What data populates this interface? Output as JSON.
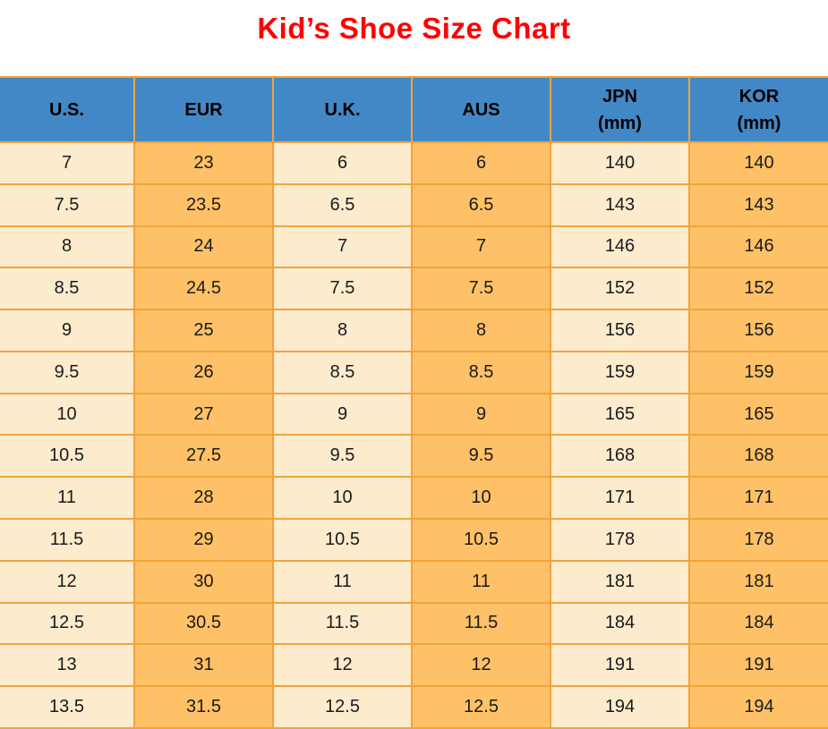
{
  "title": "Kid’s Shoe Size Chart",
  "colors": {
    "title": "#FF0000",
    "header_bg": "#4288C6",
    "header_text": "#000000",
    "cell_cream": "#FDEBCE",
    "cell_orange": "#FEC167",
    "border": "#F1A33C",
    "body_text": "#1A1A1A",
    "page_bg": "#FFFFFF"
  },
  "chart_data": {
    "type": "table",
    "title": "Kid’s Shoe Size Chart",
    "columns": [
      {
        "label": "U.S.",
        "sub": ""
      },
      {
        "label": "EUR",
        "sub": ""
      },
      {
        "label": "U.K.",
        "sub": ""
      },
      {
        "label": "AUS",
        "sub": ""
      },
      {
        "label": "JPN",
        "sub": "(mm)"
      },
      {
        "label": "KOR",
        "sub": "(mm)"
      }
    ],
    "rows": [
      [
        "7",
        "23",
        "6",
        "6",
        "140",
        "140"
      ],
      [
        "7.5",
        "23.5",
        "6.5",
        "6.5",
        "143",
        "143"
      ],
      [
        "8",
        "24",
        "7",
        "7",
        "146",
        "146"
      ],
      [
        "8.5",
        "24.5",
        "7.5",
        "7.5",
        "152",
        "152"
      ],
      [
        "9",
        "25",
        "8",
        "8",
        "156",
        "156"
      ],
      [
        "9.5",
        "26",
        "8.5",
        "8.5",
        "159",
        "159"
      ],
      [
        "10",
        "27",
        "9",
        "9",
        "165",
        "165"
      ],
      [
        "10.5",
        "27.5",
        "9.5",
        "9.5",
        "168",
        "168"
      ],
      [
        "11",
        "28",
        "10",
        "10",
        "171",
        "171"
      ],
      [
        "11.5",
        "29",
        "10.5",
        "10.5",
        "178",
        "178"
      ],
      [
        "12",
        "30",
        "11",
        "11",
        "181",
        "181"
      ],
      [
        "12.5",
        "30.5",
        "11.5",
        "11.5",
        "184",
        "184"
      ],
      [
        "13",
        "31",
        "12",
        "12",
        "191",
        "191"
      ],
      [
        "13.5",
        "31.5",
        "12.5",
        "12.5",
        "194",
        "194"
      ]
    ]
  }
}
